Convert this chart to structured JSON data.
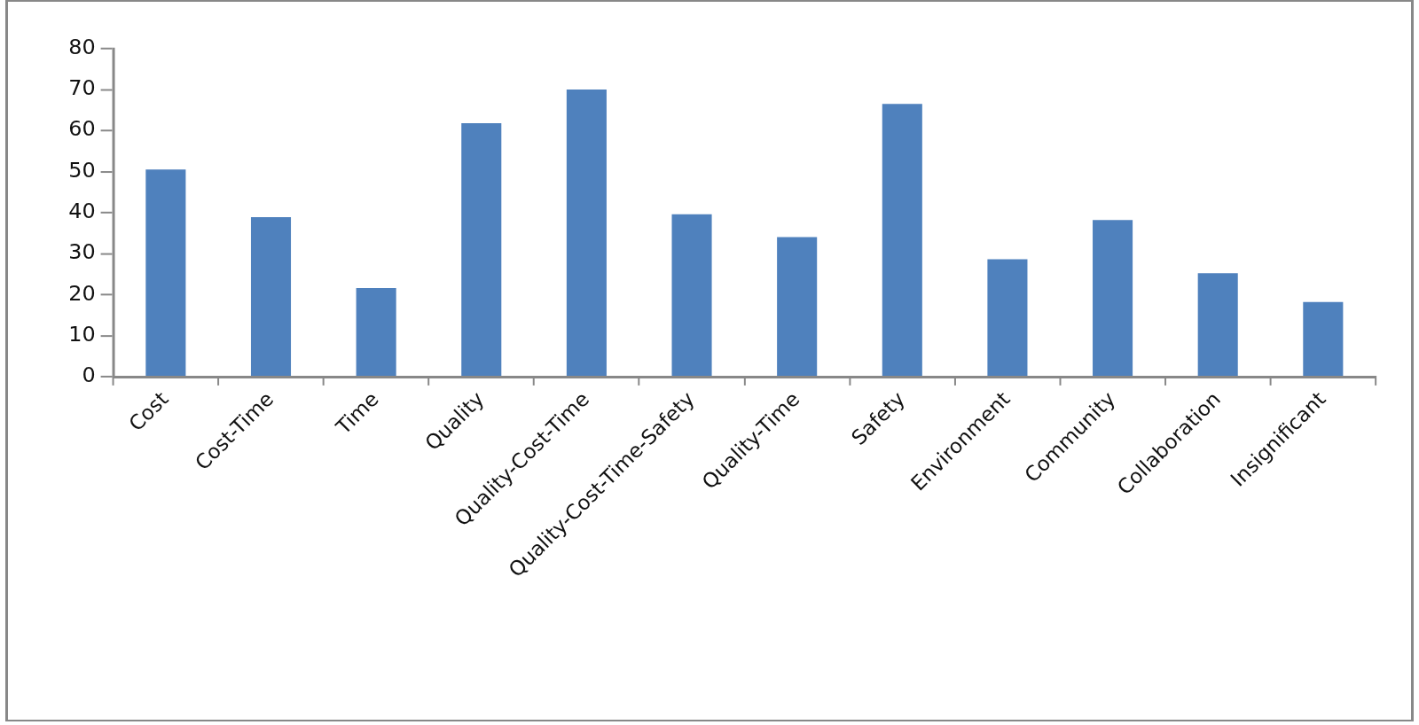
{
  "chart_data": {
    "type": "bar",
    "categories": [
      "Cost",
      "Cost-Time",
      "Time",
      "Quality",
      "Quality-Cost-Time",
      "Quality-Cost-Time-Safety",
      "Quality-Time",
      "Safety",
      "Environment",
      "Community",
      "Collaboration",
      "Insignificant"
    ],
    "values": [
      50.5,
      38.9,
      21.6,
      61.8,
      70,
      39.6,
      34,
      66.5,
      28.6,
      38.2,
      25.2,
      18.2
    ],
    "color": "#4f81bd",
    "ylim": [
      0,
      80
    ],
    "yticks": [
      0,
      10,
      20,
      30,
      40,
      50,
      60,
      70,
      80
    ],
    "grid": false
  }
}
